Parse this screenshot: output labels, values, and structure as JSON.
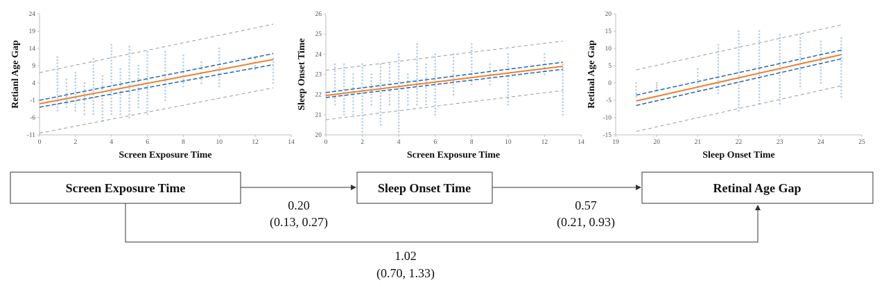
{
  "chart_data": [
    {
      "type": "scatter",
      "xlabel": "Screen Exposure Time",
      "ylabel": "Retianl Age Gap",
      "xlim": [
        0,
        14
      ],
      "ylim": [
        -11,
        24
      ],
      "xticks": [
        0,
        2,
        4,
        6,
        8,
        10,
        12,
        14
      ],
      "yticks": [
        -11,
        -6,
        -1,
        4,
        9,
        14,
        19,
        24
      ],
      "fit": {
        "x": [
          0,
          13
        ],
        "y": [
          -2.0,
          10.8
        ]
      },
      "ci": {
        "lower": [
          -3.0,
          9.3
        ],
        "upper": [
          -1.0,
          12.5
        ]
      },
      "pi": {
        "lower": [
          -10.5,
          2.6
        ],
        "upper": [
          7.0,
          21.0
        ]
      },
      "columns": [
        {
          "x": 1,
          "range": [
            -4,
            11.5
          ]
        },
        {
          "x": 1.5,
          "range": [
            -3,
            5
          ]
        },
        {
          "x": 2,
          "range": [
            -4,
            7
          ]
        },
        {
          "x": 2.5,
          "range": [
            -5,
            4
          ]
        },
        {
          "x": 3,
          "range": [
            -5,
            11
          ]
        },
        {
          "x": 3.5,
          "range": [
            -7,
            6
          ]
        },
        {
          "x": 4,
          "range": [
            -5,
            15
          ]
        },
        {
          "x": 4.5,
          "range": [
            -5,
            8
          ]
        },
        {
          "x": 5,
          "range": [
            -6,
            14.5
          ]
        },
        {
          "x": 5.5,
          "range": [
            -3,
            9
          ]
        },
        {
          "x": 6,
          "range": [
            -5,
            13
          ]
        },
        {
          "x": 7,
          "range": [
            -1,
            13
          ]
        },
        {
          "x": 8,
          "range": [
            3,
            12
          ]
        },
        {
          "x": 9,
          "range": [
            4,
            10
          ]
        },
        {
          "x": 10,
          "range": [
            3,
            14
          ]
        },
        {
          "x": 12,
          "range": [
            8,
            11
          ]
        },
        {
          "x": 13,
          "range": [
            4,
            11
          ]
        }
      ]
    },
    {
      "type": "scatter",
      "xlabel": "Screen Exposure Time",
      "ylabel": "Sleep Onset Time",
      "xlim": [
        0,
        14
      ],
      "ylim": [
        20,
        26
      ],
      "xticks": [
        0,
        2,
        4,
        6,
        8,
        10,
        12,
        14
      ],
      "yticks": [
        20,
        21,
        22,
        23,
        24,
        25,
        26
      ],
      "fit": {
        "x": [
          0,
          13
        ],
        "y": [
          21.95,
          23.4
        ]
      },
      "ci": {
        "lower": [
          21.85,
          23.25
        ],
        "upper": [
          22.1,
          23.6
        ]
      },
      "pi": {
        "lower": [
          20.75,
          22.2
        ],
        "upper": [
          23.2,
          24.65
        ]
      },
      "columns": [
        {
          "x": 0.5,
          "range": [
            21.5,
            23.5
          ]
        },
        {
          "x": 1,
          "range": [
            21,
            23.5
          ]
        },
        {
          "x": 1.5,
          "range": [
            21,
            23
          ]
        },
        {
          "x": 2,
          "range": [
            20,
            23.5
          ]
        },
        {
          "x": 2.5,
          "range": [
            21.5,
            23
          ]
        },
        {
          "x": 3,
          "range": [
            20.5,
            23.5
          ]
        },
        {
          "x": 3.5,
          "range": [
            21.5,
            23.5
          ]
        },
        {
          "x": 4,
          "range": [
            20,
            24
          ]
        },
        {
          "x": 4.5,
          "range": [
            21.5,
            23
          ]
        },
        {
          "x": 5,
          "range": [
            21.5,
            24.5
          ]
        },
        {
          "x": 5.5,
          "range": [
            21.5,
            23.5
          ]
        },
        {
          "x": 6,
          "range": [
            21,
            24
          ]
        },
        {
          "x": 7,
          "range": [
            22,
            24
          ]
        },
        {
          "x": 8,
          "range": [
            22.5,
            24.5
          ]
        },
        {
          "x": 9,
          "range": [
            22.5,
            23.5
          ]
        },
        {
          "x": 10,
          "range": [
            21.5,
            24
          ]
        },
        {
          "x": 12,
          "range": [
            23,
            24
          ]
        },
        {
          "x": 13,
          "range": [
            21,
            23.5
          ]
        }
      ]
    },
    {
      "type": "scatter",
      "xlabel": "Sleep Onset Time",
      "ylabel": "Retinal Age Gap",
      "xlim": [
        19,
        25
      ],
      "ylim": [
        -15,
        20
      ],
      "xticks": [
        19,
        20,
        21,
        22,
        23,
        24,
        25
      ],
      "yticks": [
        -15,
        -10,
        -5,
        0,
        5,
        10,
        15,
        20
      ],
      "fit": {
        "x": [
          19.5,
          24.5
        ],
        "y": [
          -5.2,
          8.2
        ]
      },
      "ci": {
        "lower": [
          -6.5,
          7.0
        ],
        "upper": [
          -3.5,
          9.5
        ]
      },
      "pi": {
        "lower": [
          -14.0,
          -0.8
        ],
        "upper": [
          3.8,
          16.8
        ]
      },
      "columns": [
        {
          "x": 19.5,
          "range": [
            -4,
            0
          ]
        },
        {
          "x": 20,
          "range": [
            -2,
            0
          ]
        },
        {
          "x": 21,
          "range": [
            -2,
            4
          ]
        },
        {
          "x": 21.5,
          "range": [
            -3,
            11
          ]
        },
        {
          "x": 22,
          "range": [
            -8,
            15
          ]
        },
        {
          "x": 22.5,
          "range": [
            -6,
            15
          ]
        },
        {
          "x": 23,
          "range": [
            -6,
            14
          ]
        },
        {
          "x": 23.5,
          "range": [
            -1,
            14
          ]
        },
        {
          "x": 24,
          "range": [
            0,
            12
          ]
        },
        {
          "x": 24.5,
          "range": [
            -4,
            13
          ]
        }
      ]
    }
  ],
  "mediation": {
    "exposure": "Screen Exposure Time",
    "mediator": "Sleep Onset Time",
    "outcome": "Retinal Age Gap",
    "path_a": {
      "est": "0.20",
      "ci": "(0.13, 0.27)"
    },
    "path_b": {
      "est": "0.57",
      "ci": "(0.21, 0.93)"
    },
    "path_c": {
      "est": "1.02",
      "ci": "(0.70, 1.33)"
    }
  },
  "colors": {
    "fit": "#f07f2a",
    "ci": "#1f66b3",
    "pi": "#999999",
    "points": "#b4cfe8",
    "axis": "#bfbfbf"
  }
}
